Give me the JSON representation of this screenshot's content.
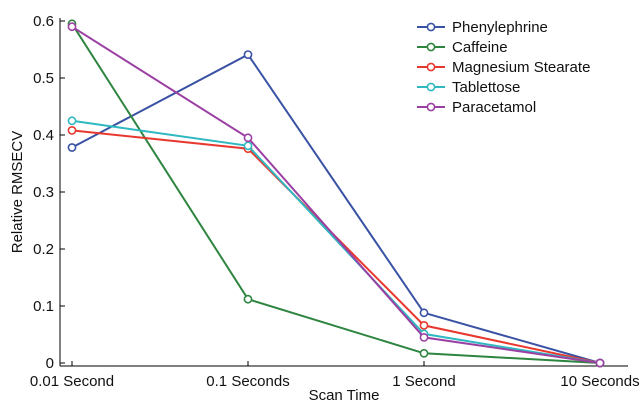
{
  "chart_data": {
    "type": "line",
    "title": "",
    "xlabel": "Scan Time",
    "ylabel": "Relative RMSECV",
    "categories": [
      "0.01 Second",
      "0.1 Seconds",
      "1 Second",
      "10 Seconds"
    ],
    "ylim": [
      0,
      0.6
    ],
    "yticks": [
      "0",
      "0.1",
      "0.2",
      "0.3",
      "0.4",
      "0.5",
      "0.6"
    ],
    "legend_position": "top-right",
    "series": [
      {
        "name": "Phenylephrine",
        "color": "#3a52a4",
        "values": [
          0.378,
          0.541,
          0.088,
          0.0
        ]
      },
      {
        "name": "Caffeine",
        "color": "#2e8540",
        "values": [
          0.595,
          0.112,
          0.017,
          0.0
        ]
      },
      {
        "name": "Magnesium Stearate",
        "color": "#e8382e",
        "values": [
          0.408,
          0.376,
          0.066,
          0.0
        ]
      },
      {
        "name": "Tablettose",
        "color": "#2fb8c0",
        "values": [
          0.425,
          0.381,
          0.051,
          0.0
        ]
      },
      {
        "name": "Paracetamol",
        "color": "#9b3fa3",
        "values": [
          0.59,
          0.395,
          0.045,
          0.0
        ]
      }
    ]
  }
}
